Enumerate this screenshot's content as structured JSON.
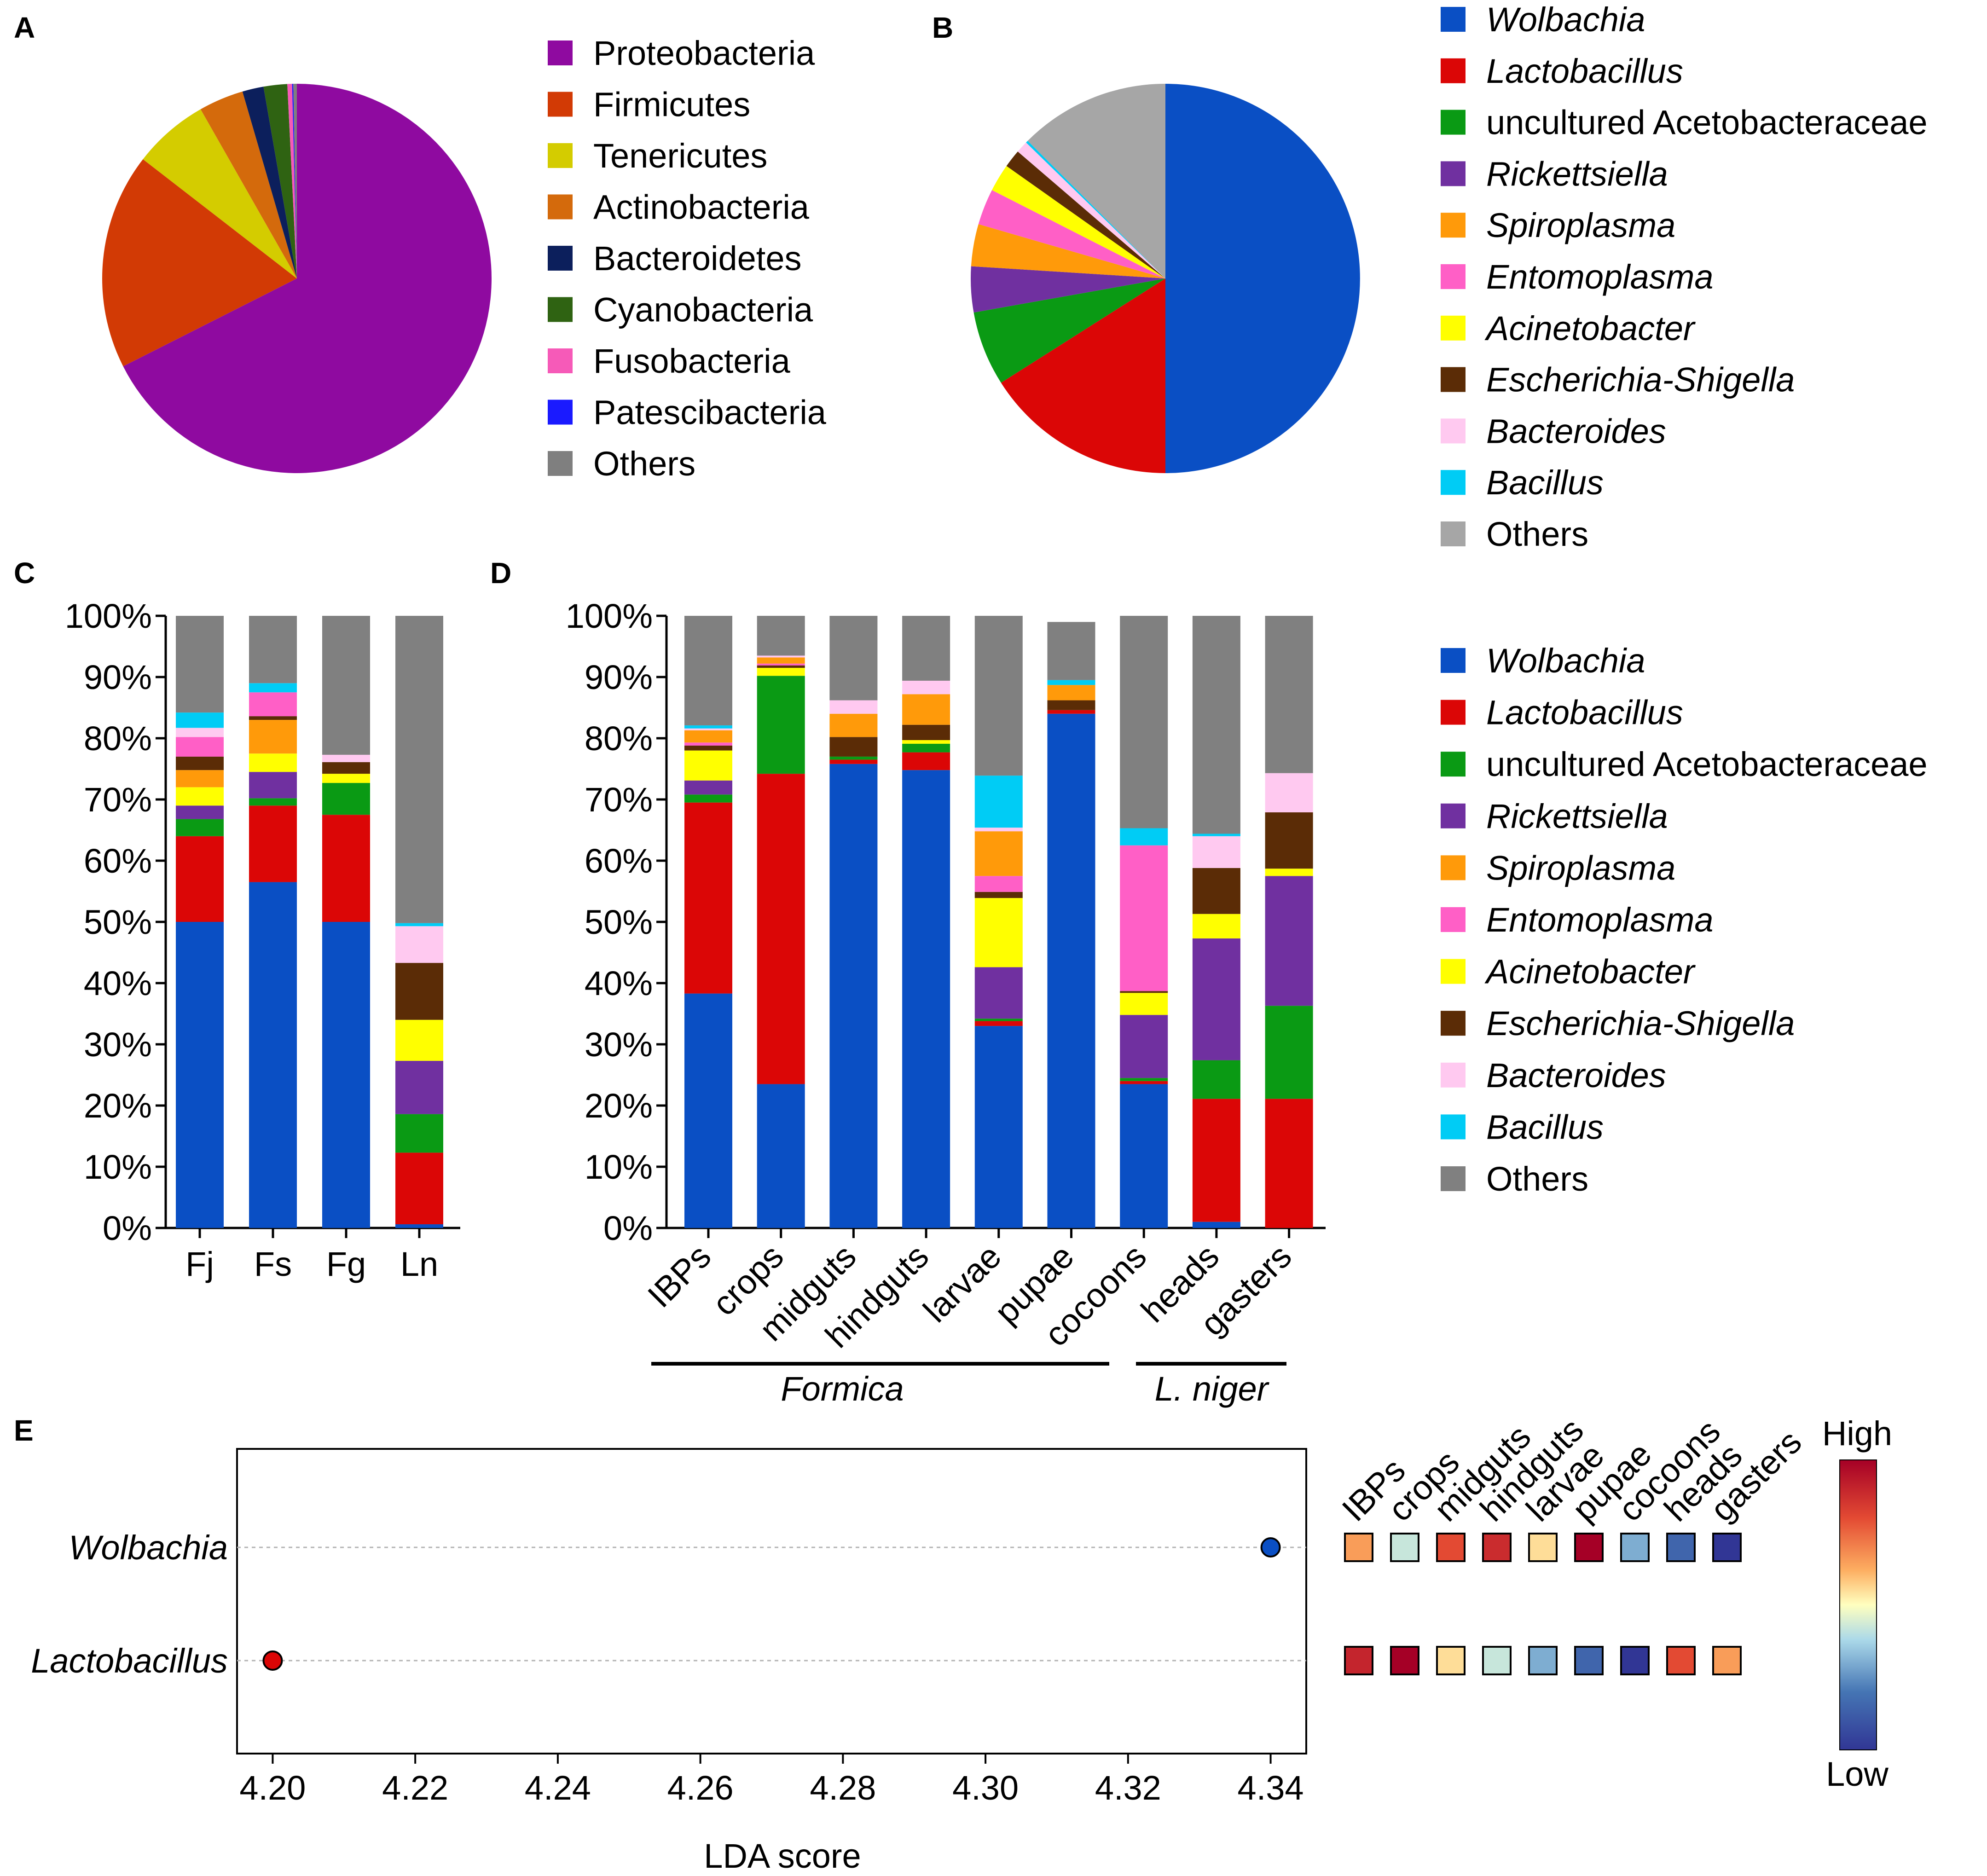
{
  "panels": {
    "A": "A",
    "B": "B",
    "C": "C",
    "D": "D",
    "E": "E"
  },
  "colors": {
    "Proteobacteria": "#8f0aa0",
    "Firmicutes": "#d23a05",
    "Tenericutes": "#d4cc00",
    "Actinobacteria": "#d46a0c",
    "Bacteroidetes": "#0c1f5c",
    "Cyanobacteria": "#2f6312",
    "Fusobacteria": "#f65ab8",
    "Patescibacteria": "#1a1aff",
    "OthersA": "#7f7f7f",
    "Wolbachia": "#0a4fc4",
    "Lactobacillus": "#db0606",
    "uncultured Acetobacteraceae": "#0a9a14",
    "Rickettsiella": "#7030a0",
    "Spiroplasma": "#ff9a0a",
    "Entomoplasma": "#ff5fc6",
    "Acinetobacter": "#ffff00",
    "Escherichia-Shigella": "#5b2c06",
    "Bacteroides": "#ffc9f0",
    "Bacillus": "#00ccf5",
    "OthersB": "#a6a6a6",
    "OthersCD": "#808080"
  },
  "chart_data": [
    {
      "id": "A",
      "type": "pie",
      "labels": [
        "Proteobacteria",
        "Firmicutes",
        "Tenericutes",
        "Actinobacteria",
        "Bacteroidetes",
        "Cyanobacteria",
        "Fusobacteria",
        "Patescibacteria",
        "Others"
      ],
      "values": [
        68.9,
        18.3,
        6.4,
        3.8,
        1.8,
        2.0,
        0.4,
        0.1,
        0.3
      ],
      "legend": [
        "Proteobacteria",
        "Firmicutes",
        "Tenericutes",
        "Actinobacteria",
        "Bacteroidetes",
        "Cyanobacteria",
        "Fusobacteria",
        "Patescibacteria",
        "Others"
      ],
      "legend_position": "right"
    },
    {
      "id": "B",
      "type": "pie",
      "labels": [
        "Wolbachia",
        "Lactobacillus",
        "uncultured Acetobacteraceae",
        "Rickettsiella",
        "Spiroplasma",
        "Entomoplasma",
        "Acinetobacter",
        "Escherichia-Shigella",
        "Bacteroides",
        "Bacillus",
        "Others"
      ],
      "values": [
        50.0,
        16.0,
        6.2,
        3.8,
        3.5,
        3.0,
        2.3,
        1.5,
        1.0,
        0.2,
        12.5
      ],
      "legend": [
        "Wolbachia",
        "Lactobacillus",
        "uncultured Acetobacteraceae",
        "Rickettsiella",
        "Spiroplasma",
        "Entomoplasma",
        "Acinetobacter",
        "Escherichia-Shigella",
        "Bacteroides",
        "Bacillus",
        "Others"
      ],
      "legend_position": "right"
    },
    {
      "id": "C",
      "type": "bar",
      "stacked": true,
      "categories": [
        "Fj",
        "Fs",
        "Fg",
        "Ln"
      ],
      "yticks": [
        "0%",
        "10%",
        "20%",
        "30%",
        "40%",
        "50%",
        "60%",
        "70%",
        "80%",
        "90%",
        "100%"
      ],
      "ylim": [
        0,
        100
      ],
      "series_order": [
        "Wolbachia",
        "Lactobacillus",
        "uncultured Acetobacteraceae",
        "Rickettsiella",
        "Acinetobacter",
        "Spiroplasma",
        "Escherichia-Shigella",
        "Entomoplasma",
        "Bacteroides",
        "Bacillus",
        "Others"
      ],
      "values": [
        [
          50.0,
          56.5,
          50.0,
          0.6
        ],
        [
          14.0,
          12.5,
          17.5,
          11.7
        ],
        [
          2.8,
          1.2,
          5.2,
          6.3
        ],
        [
          2.2,
          4.3,
          0.0,
          8.7
        ],
        [
          3.0,
          3.0,
          1.5,
          6.7
        ],
        [
          2.8,
          5.5,
          0.0,
          0.0
        ],
        [
          2.2,
          0.6,
          1.9,
          9.3
        ],
        [
          3.2,
          3.9,
          0.0,
          0.0
        ],
        [
          1.5,
          0.0,
          1.2,
          6.0
        ],
        [
          2.5,
          1.5,
          0.0,
          0.5
        ],
        [
          15.8,
          11.0,
          22.7,
          50.2
        ]
      ]
    },
    {
      "id": "D",
      "type": "bar",
      "stacked": true,
      "categories": [
        "IBPs",
        "crops",
        "midguts",
        "hindguts",
        "larvae",
        "pupae",
        "cocoons",
        "heads",
        "gasters"
      ],
      "yticks": [
        "0%",
        "10%",
        "20%",
        "30%",
        "40%",
        "50%",
        "60%",
        "70%",
        "80%",
        "90%",
        "100%"
      ],
      "ylim": [
        0,
        100
      ],
      "series_order": [
        "Wolbachia",
        "Lactobacillus",
        "uncultured Acetobacteraceae",
        "Rickettsiella",
        "Acinetobacter",
        "Escherichia-Shigella",
        "Entomoplasma",
        "Spiroplasma",
        "Bacteroides",
        "Bacillus",
        "Others"
      ],
      "values": [
        [
          38.3,
          23.5,
          75.8,
          74.8,
          33.0,
          84.0,
          23.5,
          1.0,
          0.0
        ],
        [
          31.2,
          50.7,
          0.7,
          2.9,
          0.8,
          0.6,
          0.5,
          20.1,
          21.1
        ],
        [
          1.3,
          16.0,
          0.5,
          1.4,
          0.4,
          0.0,
          0.5,
          6.3,
          15.2
        ],
        [
          2.3,
          0.0,
          0.0,
          0.0,
          8.4,
          0.0,
          10.3,
          19.9,
          21.2
        ],
        [
          4.9,
          1.3,
          0.0,
          0.6,
          11.3,
          0.0,
          3.6,
          4.0,
          1.2
        ],
        [
          0.8,
          0.4,
          3.2,
          2.5,
          1.0,
          1.6,
          0.3,
          7.5,
          9.2
        ],
        [
          0.5,
          0.3,
          0.0,
          0.0,
          2.6,
          0.0,
          23.8,
          0.0,
          0.0
        ],
        [
          2.0,
          1.0,
          3.8,
          5.0,
          7.3,
          2.5,
          0.0,
          0.0,
          0.0
        ],
        [
          0.3,
          0.3,
          2.2,
          2.2,
          0.6,
          0.0,
          0.0,
          5.2,
          6.4
        ],
        [
          0.5,
          0.0,
          0.0,
          0.0,
          8.5,
          0.8,
          2.8,
          0.4,
          0.0
        ],
        [
          17.9,
          6.5,
          13.8,
          10.6,
          26.1,
          9.5,
          34.7,
          35.6,
          25.7
        ]
      ],
      "groups": [
        {
          "label": "Formica",
          "from": 0,
          "to": 6
        },
        {
          "label": "L. niger",
          "from": 7,
          "to": 8
        }
      ],
      "legend": [
        "Wolbachia",
        "Lactobacillus",
        "uncultured Acetobacteraceae",
        "Rickettsiella",
        "Spiroplasma",
        "Entomoplasma",
        "Acinetobacter",
        "Escherichia-Shigella",
        "Bacteroides",
        "Bacillus",
        "Others"
      ],
      "legend_position": "right"
    },
    {
      "id": "E",
      "type": "scatter",
      "title": "",
      "xlabel": "LDA score",
      "xlim": [
        4.195,
        4.345
      ],
      "xticks": [
        "4.20",
        "4.22",
        "4.24",
        "4.26",
        "4.28",
        "4.30",
        "4.32",
        "4.34"
      ],
      "points": [
        {
          "label": "Wolbachia",
          "x": 4.34,
          "color": "#0a4fc4"
        },
        {
          "label": "Lactobacillus",
          "x": 4.2,
          "color": "#db0606"
        }
      ],
      "heatmap": {
        "columns": [
          "IBPs",
          "crops",
          "midguts",
          "hindguts",
          "larvae",
          "pupae",
          "cocoons",
          "heads",
          "gasters"
        ],
        "rows": [
          "Wolbachia",
          "Lactobacillus"
        ],
        "values": [
          [
            0.65,
            0.42,
            0.8,
            0.88,
            0.55,
            1.0,
            0.3,
            0.15,
            0.0
          ],
          [
            0.9,
            1.0,
            0.55,
            0.42,
            0.3,
            0.15,
            0.0,
            0.8,
            0.65
          ]
        ]
      },
      "colorbar": {
        "high_label": "High",
        "low_label": "Low"
      }
    }
  ]
}
